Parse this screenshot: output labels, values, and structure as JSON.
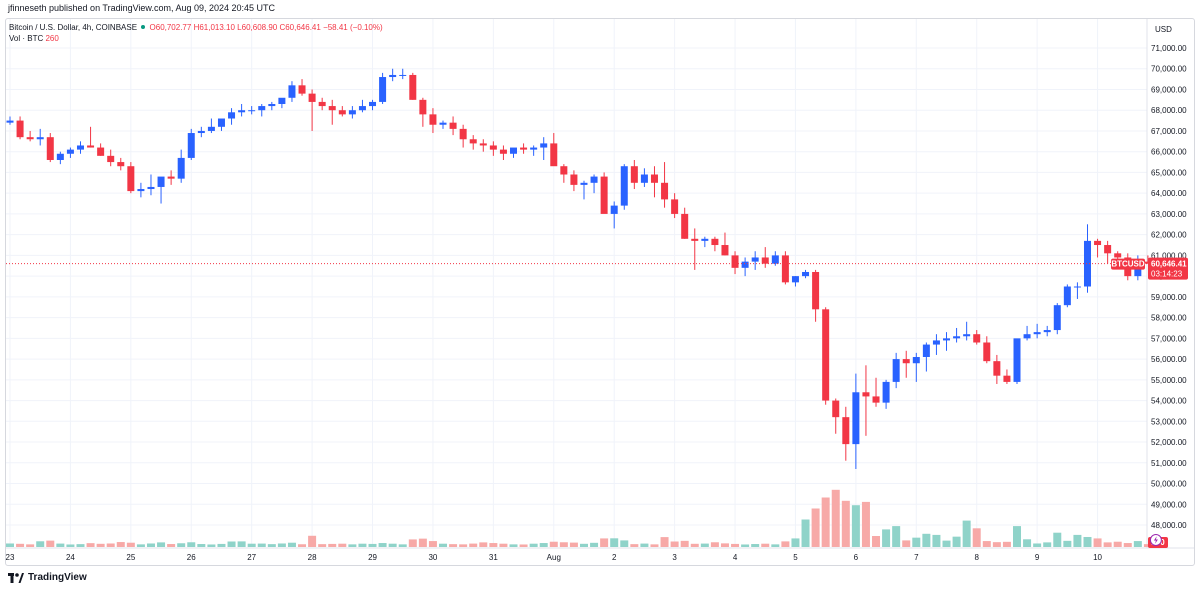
{
  "header": {
    "published": "jfinneseth published on TradingView.com, Aug 09, 2024 20:45 UTC"
  },
  "legend": {
    "symbol": "Bitcoin / U.S. Dollar, 4h, COINBASE",
    "open": "O60,702.77",
    "high": "H61,013.10",
    "low": "L60,608.90",
    "close": "C60,646.41",
    "change": "−58.41 (−0.10%)",
    "vol_label": "Vol · BTC",
    "vol_value": "260"
  },
  "footer": {
    "brand": "TradingView"
  },
  "colors": {
    "up": "#2962ff",
    "down": "#f23645",
    "vol_up": "#8fd3c9",
    "vol_down": "#f7a9a7",
    "grid": "#f0f3fa"
  },
  "chart_data": {
    "type": "candlestick",
    "timeframe": "4h",
    "currency": "USD",
    "price_tag": {
      "symbol": "BTCUSD",
      "price": "60,646.41",
      "countdown": "03:14:23"
    },
    "volume_tag": "260",
    "y_range": [
      47000,
      72000
    ],
    "y_ticks": [
      48000,
      49000,
      50000,
      51000,
      52000,
      53000,
      54000,
      55000,
      56000,
      57000,
      58000,
      59000,
      60000,
      61000,
      62000,
      63000,
      64000,
      65000,
      66000,
      67000,
      68000,
      69000,
      70000,
      71000
    ],
    "y_tick_labels": [
      "48,000.00",
      "49,000.00",
      "50,000.00",
      "51,000.00",
      "52,000.00",
      "53,000.00",
      "54,000.00",
      "55,000.00",
      "56,000.00",
      "57,000.00",
      "58,000.00",
      "59,000.00",
      "60,000.00",
      "61,000.00",
      "62,000.00",
      "63,000.00",
      "64,000.00",
      "65,000.00",
      "66,000.00",
      "67,000.00",
      "68,000.00",
      "69,000.00",
      "70,000.00",
      "71,000.00"
    ],
    "x_labels": [
      {
        "label": "23",
        "index": 0
      },
      {
        "label": "24",
        "index": 6
      },
      {
        "label": "25",
        "index": 12
      },
      {
        "label": "26",
        "index": 18
      },
      {
        "label": "27",
        "index": 24
      },
      {
        "label": "28",
        "index": 30
      },
      {
        "label": "29",
        "index": 36
      },
      {
        "label": "30",
        "index": 42
      },
      {
        "label": "31",
        "index": 48
      },
      {
        "label": "Aug",
        "index": 54
      },
      {
        "label": "2",
        "index": 60
      },
      {
        "label": "3",
        "index": 66
      },
      {
        "label": "4",
        "index": 72
      },
      {
        "label": "5",
        "index": 78
      },
      {
        "label": "6",
        "index": 84
      },
      {
        "label": "7",
        "index": 90
      },
      {
        "label": "8",
        "index": 96
      },
      {
        "label": "9",
        "index": 102
      },
      {
        "label": "10",
        "index": 108
      }
    ],
    "candles": [
      [
        67400,
        67700,
        67300,
        67500,
        320
      ],
      [
        67500,
        67700,
        66600,
        66700,
        290
      ],
      [
        66700,
        67000,
        66500,
        66600,
        240
      ],
      [
        66600,
        67100,
        66300,
        66700,
        520
      ],
      [
        66700,
        66900,
        65500,
        65600,
        580
      ],
      [
        65600,
        66000,
        65400,
        65900,
        310
      ],
      [
        65900,
        66200,
        65700,
        66100,
        230
      ],
      [
        66100,
        66500,
        65900,
        66300,
        260
      ],
      [
        66300,
        67200,
        66200,
        66200,
        350
      ],
      [
        66200,
        66400,
        65800,
        65800,
        290
      ],
      [
        65800,
        66100,
        65300,
        65500,
        320
      ],
      [
        65500,
        65700,
        65100,
        65300,
        450
      ],
      [
        65300,
        65500,
        64000,
        64100,
        390
      ],
      [
        64100,
        64500,
        63800,
        64200,
        240
      ],
      [
        64200,
        64900,
        63900,
        64300,
        320
      ],
      [
        64300,
        64600,
        63500,
        64800,
        420
      ],
      [
        64800,
        65100,
        64400,
        64700,
        270
      ],
      [
        64700,
        66100,
        64500,
        65700,
        340
      ],
      [
        65700,
        67100,
        65600,
        66900,
        430
      ],
      [
        66900,
        67200,
        66700,
        67000,
        270
      ],
      [
        67000,
        67600,
        66900,
        67200,
        230
      ],
      [
        67200,
        67500,
        67000,
        67600,
        280
      ],
      [
        67600,
        68100,
        67300,
        67900,
        500
      ],
      [
        67900,
        68300,
        67700,
        68000,
        510
      ],
      [
        68000,
        68200,
        67800,
        68000,
        300
      ],
      [
        68000,
        68300,
        67700,
        68200,
        310
      ],
      [
        68200,
        68400,
        68000,
        68300,
        260
      ],
      [
        68300,
        68500,
        68100,
        68600,
        320
      ],
      [
        68600,
        69400,
        68400,
        69200,
        390
      ],
      [
        69200,
        69500,
        68700,
        68800,
        250
      ],
      [
        68800,
        69000,
        67000,
        68400,
        1020
      ],
      [
        68400,
        68600,
        68000,
        68200,
        260
      ],
      [
        68200,
        68500,
        67300,
        68000,
        280
      ],
      [
        68000,
        68200,
        67700,
        67800,
        300
      ],
      [
        67800,
        68200,
        67600,
        68000,
        240
      ],
      [
        68000,
        68500,
        67900,
        68200,
        300
      ],
      [
        68200,
        68500,
        68000,
        68400,
        280
      ],
      [
        68400,
        69800,
        68300,
        69600,
        360
      ],
      [
        69600,
        70000,
        69400,
        69700,
        300
      ],
      [
        69700,
        70000,
        69500,
        69700,
        240
      ],
      [
        69700,
        69800,
        68500,
        68500,
        690
      ],
      [
        68500,
        68600,
        67200,
        67800,
        760
      ],
      [
        67800,
        68100,
        66900,
        67300,
        540
      ],
      [
        67300,
        67500,
        67100,
        67400,
        300
      ],
      [
        67400,
        67700,
        66800,
        67100,
        260
      ],
      [
        67100,
        67300,
        66200,
        66600,
        240
      ],
      [
        66600,
        66800,
        66100,
        66400,
        310
      ],
      [
        66400,
        66600,
        66000,
        66300,
        420
      ],
      [
        66300,
        66500,
        65800,
        66100,
        360
      ],
      [
        66100,
        66300,
        65600,
        65900,
        300
      ],
      [
        65900,
        66100,
        65700,
        66200,
        240
      ],
      [
        66200,
        66400,
        65900,
        66100,
        230
      ],
      [
        66100,
        66300,
        65800,
        66200,
        300
      ],
      [
        66200,
        66700,
        65600,
        66400,
        360
      ],
      [
        66400,
        66900,
        65400,
        65300,
        480
      ],
      [
        65300,
        65400,
        64500,
        64900,
        430
      ],
      [
        64900,
        65100,
        64100,
        64400,
        400
      ],
      [
        64400,
        64600,
        63700,
        64500,
        290
      ],
      [
        64500,
        64900,
        64000,
        64800,
        380
      ],
      [
        64800,
        65000,
        63200,
        63000,
        780
      ],
      [
        63000,
        63600,
        62300,
        63400,
        790
      ],
      [
        63400,
        65400,
        63200,
        65300,
        600
      ],
      [
        65300,
        65600,
        64200,
        64500,
        260
      ],
      [
        64500,
        65200,
        64300,
        64900,
        310
      ],
      [
        64900,
        65300,
        63800,
        64500,
        240
      ],
      [
        64500,
        65500,
        63300,
        63700,
        900
      ],
      [
        63700,
        64000,
        62800,
        63000,
        500
      ],
      [
        63000,
        63300,
        61800,
        61800,
        560
      ],
      [
        61800,
        62300,
        60300,
        61700,
        290
      ],
      [
        61700,
        61900,
        61400,
        61800,
        310
      ],
      [
        61800,
        61900,
        61200,
        61500,
        430
      ],
      [
        61500,
        62100,
        61000,
        61000,
        330
      ],
      [
        61000,
        61200,
        60100,
        60400,
        280
      ],
      [
        60400,
        60900,
        60000,
        60700,
        230
      ],
      [
        60700,
        61200,
        60300,
        60900,
        270
      ],
      [
        60900,
        61400,
        60400,
        60600,
        300
      ],
      [
        60600,
        61200,
        60500,
        61000,
        240
      ],
      [
        61000,
        61200,
        59600,
        59700,
        510
      ],
      [
        59700,
        60000,
        59500,
        60000,
        780
      ],
      [
        60000,
        60300,
        59900,
        60200,
        2500
      ],
      [
        60200,
        60300,
        57800,
        58400,
        3500
      ],
      [
        58400,
        58500,
        53800,
        54000,
        4500
      ],
      [
        54000,
        54100,
        52400,
        53200,
        5200
      ],
      [
        53200,
        53700,
        51100,
        51900,
        4200
      ],
      [
        51900,
        55300,
        50700,
        54400,
        3800
      ],
      [
        54400,
        55700,
        52300,
        54200,
        4100
      ],
      [
        54200,
        55100,
        53700,
        53900,
        1000
      ],
      [
        53900,
        55000,
        53600,
        54900,
        1600
      ],
      [
        54900,
        56300,
        54600,
        56000,
        1900
      ],
      [
        56000,
        56400,
        55100,
        55800,
        600
      ],
      [
        55800,
        56300,
        54900,
        56100,
        850
      ],
      [
        56100,
        56800,
        55400,
        56700,
        1200
      ],
      [
        56700,
        57200,
        56200,
        56900,
        1100
      ],
      [
        56900,
        57300,
        56400,
        57000,
        580
      ],
      [
        57000,
        57500,
        56800,
        57100,
        940
      ],
      [
        57100,
        57800,
        56900,
        57200,
        2400
      ],
      [
        57200,
        57400,
        56700,
        56800,
        1700
      ],
      [
        56800,
        57100,
        55800,
        55900,
        540
      ],
      [
        55900,
        56200,
        54800,
        55200,
        440
      ],
      [
        55200,
        55500,
        54800,
        54900,
        470
      ],
      [
        54900,
        56900,
        54800,
        57000,
        1900
      ],
      [
        57000,
        57600,
        56900,
        57200,
        700
      ],
      [
        57200,
        57700,
        57000,
        57300,
        320
      ],
      [
        57300,
        57600,
        57100,
        57400,
        420
      ],
      [
        57400,
        58700,
        57200,
        58600,
        1300
      ],
      [
        58600,
        59600,
        58500,
        59500,
        560
      ],
      [
        59500,
        59700,
        58900,
        59500,
        1100
      ],
      [
        59500,
        62500,
        59200,
        61700,
        910
      ],
      [
        61700,
        61800,
        60900,
        61500,
        780
      ],
      [
        61500,
        61700,
        60600,
        61100,
        420
      ],
      [
        61100,
        61200,
        60500,
        60900,
        480
      ],
      [
        60900,
        61100,
        59800,
        60000,
        360
      ],
      [
        60000,
        61000,
        59800,
        60700,
        540
      ],
      [
        60700,
        61000,
        60600,
        60600,
        260
      ]
    ]
  }
}
